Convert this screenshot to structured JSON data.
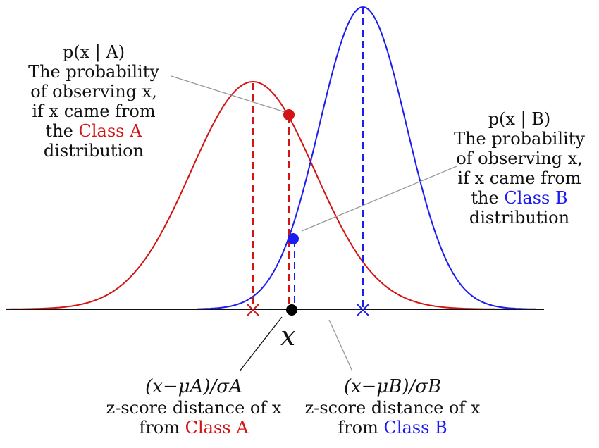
{
  "labels": {
    "pA_line1": "p(x | A)",
    "pA_line2": "The probability",
    "pA_line3": "of observing x,",
    "pA_line4": "if x came from",
    "pA_line5_pre": "the ",
    "pA_line5_class": "Class A",
    "pA_line6": "distribution",
    "pB_line1": "p(x | B)",
    "pB_line2": "The probability",
    "pB_line3": "of observing x,",
    "pB_line4": "if x came from",
    "pB_line5_pre": "the ",
    "pB_line5_class": "Class B",
    "pB_line6": "distribution",
    "x": "x",
    "zA_formula": "(x−μA)/σA",
    "zA_line1": "z-score distance of x",
    "zA_line2_pre": "from ",
    "zA_line2_class": "Class A",
    "zB_formula": "(x−μB)/σB",
    "zB_line1": "z-score distance of x",
    "zB_line2_pre": "from ",
    "zB_line2_class": "Class B"
  },
  "colors": {
    "classA": "#d21414",
    "classB": "#1c1cf0",
    "axis": "#111111",
    "leader": "#999999"
  }
}
